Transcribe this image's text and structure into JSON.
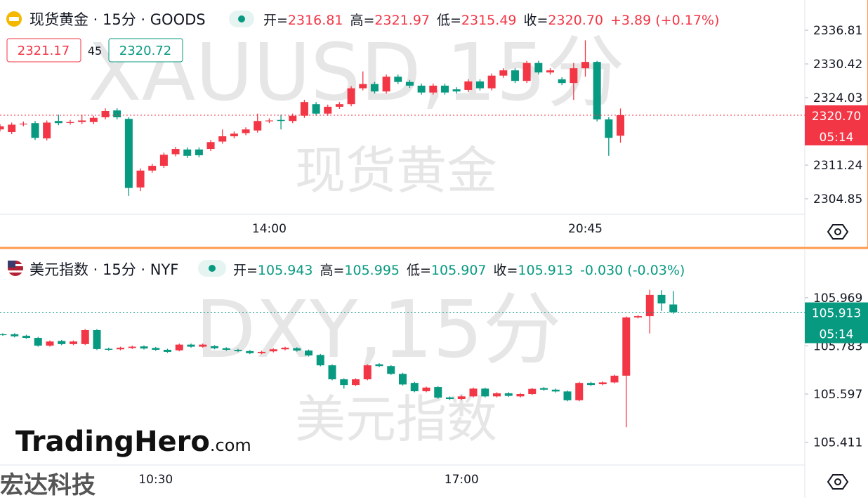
{
  "chart_data": [
    {
      "type": "candlestick",
      "title": "现货黄金 · 15分 · GOODS",
      "watermark": "XAUUSD,15分",
      "watermark_sub": "现货黄金",
      "header_fields": [
        "开=",
        "2316.81",
        "高=",
        "2321.97",
        "低=",
        "2315.49",
        "收=",
        "2320.70",
        "+3.89 (+0.17%)"
      ],
      "buttons": [
        "2321.17",
        "45",
        "2320.72"
      ],
      "up_color": "#f23645",
      "down_color": "#089981",
      "grid": false,
      "ylim": [
        2301.92,
        2342.54
      ],
      "yticks": [
        2336.81,
        2330.42,
        2324.03,
        2311.24,
        2304.85
      ],
      "last_price": {
        "value": 2320.7,
        "label": "2320.70"
      },
      "countdown": "05:14",
      "categories": [
        null,
        null,
        null,
        null,
        null,
        null,
        null,
        null,
        null,
        null,
        null,
        null,
        null,
        null,
        null,
        null,
        null,
        null,
        null,
        null,
        null,
        null,
        null,
        "14:00",
        null,
        null,
        null,
        null,
        null,
        null,
        null,
        null,
        null,
        null,
        null,
        null,
        null,
        null,
        null,
        null,
        null,
        null,
        null,
        null,
        null,
        null,
        null,
        null,
        null,
        null,
        "20:45",
        null,
        null,
        null
      ],
      "open": [
        2318.0,
        2317.5,
        2319.0,
        2319.2,
        2316.3,
        2319.6,
        2319.3,
        2319.4,
        2319.4,
        2320.3,
        2321.6,
        2320.0,
        2307.0,
        2310.2,
        2311.1,
        2313.3,
        2314.2,
        2314.2,
        2314.3,
        2315.7,
        2316.7,
        2317.3,
        2317.8,
        2319.6,
        2319.8,
        2319.6,
        2320.6,
        2322.8,
        2321.0,
        2322.3,
        2322.8,
        2325.8,
        2326.6,
        2325.2,
        2328.0,
        2327.0,
        2326.3,
        2325.0,
        2326.3,
        2325.6,
        2325.5,
        2327.1,
        2325.8,
        2328.2,
        2329.2,
        2327.2,
        2330.6,
        2328.8,
        2327.5,
        2326.8,
        2329.6,
        2330.8,
        2319.9,
        2316.81
      ],
      "high": [
        2319.0,
        2319.3,
        2319.5,
        2319.6,
        2319.7,
        2320.8,
        2319.8,
        2320.8,
        2320.6,
        2322.0,
        2322.0,
        2320.3,
        2310.6,
        2311.5,
        2313.6,
        2314.7,
        2314.6,
        2314.6,
        2316.0,
        2318.0,
        2317.6,
        2318.4,
        2321.0,
        2320.1,
        2320.8,
        2321.0,
        2323.6,
        2323.2,
        2322.7,
        2323.2,
        2326.2,
        2329.0,
        2327.0,
        2328.4,
        2328.4,
        2327.4,
        2326.7,
        2326.7,
        2326.7,
        2326.0,
        2327.5,
        2327.5,
        2328.6,
        2329.6,
        2329.6,
        2331.0,
        2331.0,
        2329.6,
        2327.9,
        2330.6,
        2334.9,
        2331.0,
        2320.3,
        2321.97
      ],
      "low": [
        2317.6,
        2317.1,
        2318.6,
        2316.0,
        2315.9,
        2318.8,
        2318.9,
        2319.0,
        2319.0,
        2319.9,
        2319.9,
        2305.4,
        2306.3,
        2309.8,
        2310.7,
        2312.9,
        2312.6,
        2312.7,
        2313.9,
        2315.3,
        2316.3,
        2316.9,
        2317.4,
        2319.2,
        2318.0,
        2319.2,
        2320.2,
        2320.6,
        2320.6,
        2321.9,
        2322.4,
        2325.4,
        2324.8,
        2324.8,
        2326.6,
        2325.9,
        2324.6,
        2324.6,
        2324.6,
        2324.8,
        2325.1,
        2325.4,
        2325.4,
        2327.8,
        2326.8,
        2326.8,
        2328.4,
        2328.4,
        2326.4,
        2323.6,
        2328.0,
        2319.5,
        2313.0,
        2315.49
      ],
      "close": [
        2318.6,
        2318.9,
        2319.1,
        2316.4,
        2319.3,
        2319.2,
        2319.4,
        2319.7,
        2320.2,
        2321.5,
        2320.3,
        2306.9,
        2310.2,
        2311.1,
        2313.2,
        2314.3,
        2313.0,
        2313.1,
        2315.6,
        2316.7,
        2317.2,
        2318.0,
        2319.6,
        2319.7,
        2319.6,
        2320.6,
        2323.2,
        2321.0,
        2322.3,
        2322.8,
        2325.8,
        2326.6,
        2325.2,
        2328.0,
        2327.0,
        2326.3,
        2325.0,
        2326.3,
        2325.0,
        2325.2,
        2327.1,
        2325.8,
        2328.2,
        2329.2,
        2327.2,
        2330.6,
        2328.8,
        2329.2,
        2326.8,
        2329.6,
        2330.8,
        2319.9,
        2316.4,
        2320.7
      ]
    },
    {
      "type": "candlestick",
      "title": "美元指数 · 15分 · NYF",
      "watermark": "DXY,15分",
      "watermark_sub": "美元指数",
      "header_fields": [
        "开=",
        "105.943",
        "高=",
        "105.995",
        "低=",
        "105.907",
        "收=",
        "105.913",
        "-0.030 (-0.03%)"
      ],
      "up_color": "#f23645",
      "down_color": "#089981",
      "grid": false,
      "ylim": [
        105.323,
        106.156
      ],
      "yticks": [
        105.969,
        105.783,
        105.597,
        105.411
      ],
      "last_price": {
        "value": 105.913,
        "label": "105.913"
      },
      "countdown": "05:14",
      "categories": [
        null,
        null,
        null,
        null,
        null,
        null,
        null,
        null,
        null,
        null,
        null,
        null,
        null,
        "10:30",
        null,
        null,
        null,
        null,
        null,
        null,
        null,
        null,
        null,
        null,
        null,
        null,
        null,
        null,
        null,
        null,
        null,
        null,
        null,
        null,
        null,
        null,
        null,
        null,
        null,
        "17:00",
        null,
        null,
        null,
        null,
        null,
        null,
        null,
        null,
        null,
        null,
        null,
        null,
        null,
        null,
        null,
        null,
        null,
        null
      ],
      "open": [
        105.828,
        105.828,
        105.822,
        105.814,
        105.784,
        105.802,
        105.79,
        105.79,
        105.844,
        105.772,
        105.77,
        105.775,
        105.781,
        105.775,
        105.768,
        105.766,
        105.788,
        105.78,
        105.782,
        105.774,
        105.768,
        105.763,
        105.755,
        105.762,
        105.77,
        105.774,
        105.765,
        105.748,
        105.708,
        105.654,
        105.632,
        105.654,
        105.712,
        105.705,
        105.675,
        105.64,
        105.608,
        105.624,
        105.584,
        105.578,
        105.588,
        105.618,
        105.588,
        105.6,
        105.588,
        105.597,
        105.62,
        105.614,
        105.607,
        105.573,
        105.64,
        105.635,
        105.642,
        105.668,
        105.893,
        105.898,
        105.98,
        105.943
      ],
      "high": [
        105.832,
        105.832,
        105.826,
        105.818,
        105.804,
        105.806,
        105.804,
        105.848,
        105.848,
        105.776,
        105.78,
        105.784,
        105.785,
        105.779,
        105.772,
        105.792,
        105.792,
        105.792,
        105.786,
        105.778,
        105.772,
        105.767,
        105.764,
        105.774,
        105.78,
        105.778,
        105.769,
        105.752,
        105.712,
        105.658,
        105.658,
        105.712,
        105.716,
        105.709,
        105.679,
        105.644,
        105.626,
        105.628,
        105.588,
        105.592,
        105.622,
        105.622,
        105.604,
        105.604,
        105.601,
        105.621,
        105.624,
        105.618,
        105.611,
        105.644,
        105.644,
        105.646,
        105.672,
        105.897,
        105.902,
        106.0,
        105.998,
        105.995
      ],
      "low": [
        105.822,
        105.816,
        105.81,
        105.78,
        105.78,
        105.786,
        105.786,
        105.786,
        105.767,
        105.764,
        105.766,
        105.771,
        105.769,
        105.764,
        105.756,
        105.762,
        105.776,
        105.776,
        105.77,
        105.764,
        105.759,
        105.751,
        105.751,
        105.758,
        105.766,
        105.761,
        105.742,
        105.704,
        105.65,
        105.618,
        105.628,
        105.65,
        105.701,
        105.671,
        105.63,
        105.604,
        105.604,
        105.579,
        105.574,
        105.574,
        105.584,
        105.584,
        105.584,
        105.586,
        105.584,
        105.593,
        105.61,
        105.603,
        105.569,
        105.569,
        105.628,
        105.631,
        105.638,
        105.469,
        105.889,
        105.831,
        105.918,
        105.907
      ],
      "close": [
        105.826,
        105.82,
        105.814,
        105.784,
        105.8,
        105.79,
        105.8,
        105.844,
        105.771,
        105.768,
        105.776,
        105.78,
        105.773,
        105.768,
        105.76,
        105.788,
        105.78,
        105.788,
        105.774,
        105.768,
        105.763,
        105.755,
        105.76,
        105.77,
        105.776,
        105.765,
        105.746,
        105.708,
        105.654,
        105.632,
        105.654,
        105.708,
        105.705,
        105.675,
        105.634,
        105.608,
        105.622,
        105.583,
        105.578,
        105.588,
        105.618,
        105.588,
        105.6,
        105.59,
        105.597,
        105.617,
        105.614,
        105.607,
        105.573,
        105.64,
        105.632,
        105.642,
        105.668,
        105.893,
        105.898,
        105.98,
        105.947,
        105.913
      ]
    }
  ],
  "logo": [
    "TradingHero",
    ".com"
  ],
  "corner_text": "宏达科技"
}
